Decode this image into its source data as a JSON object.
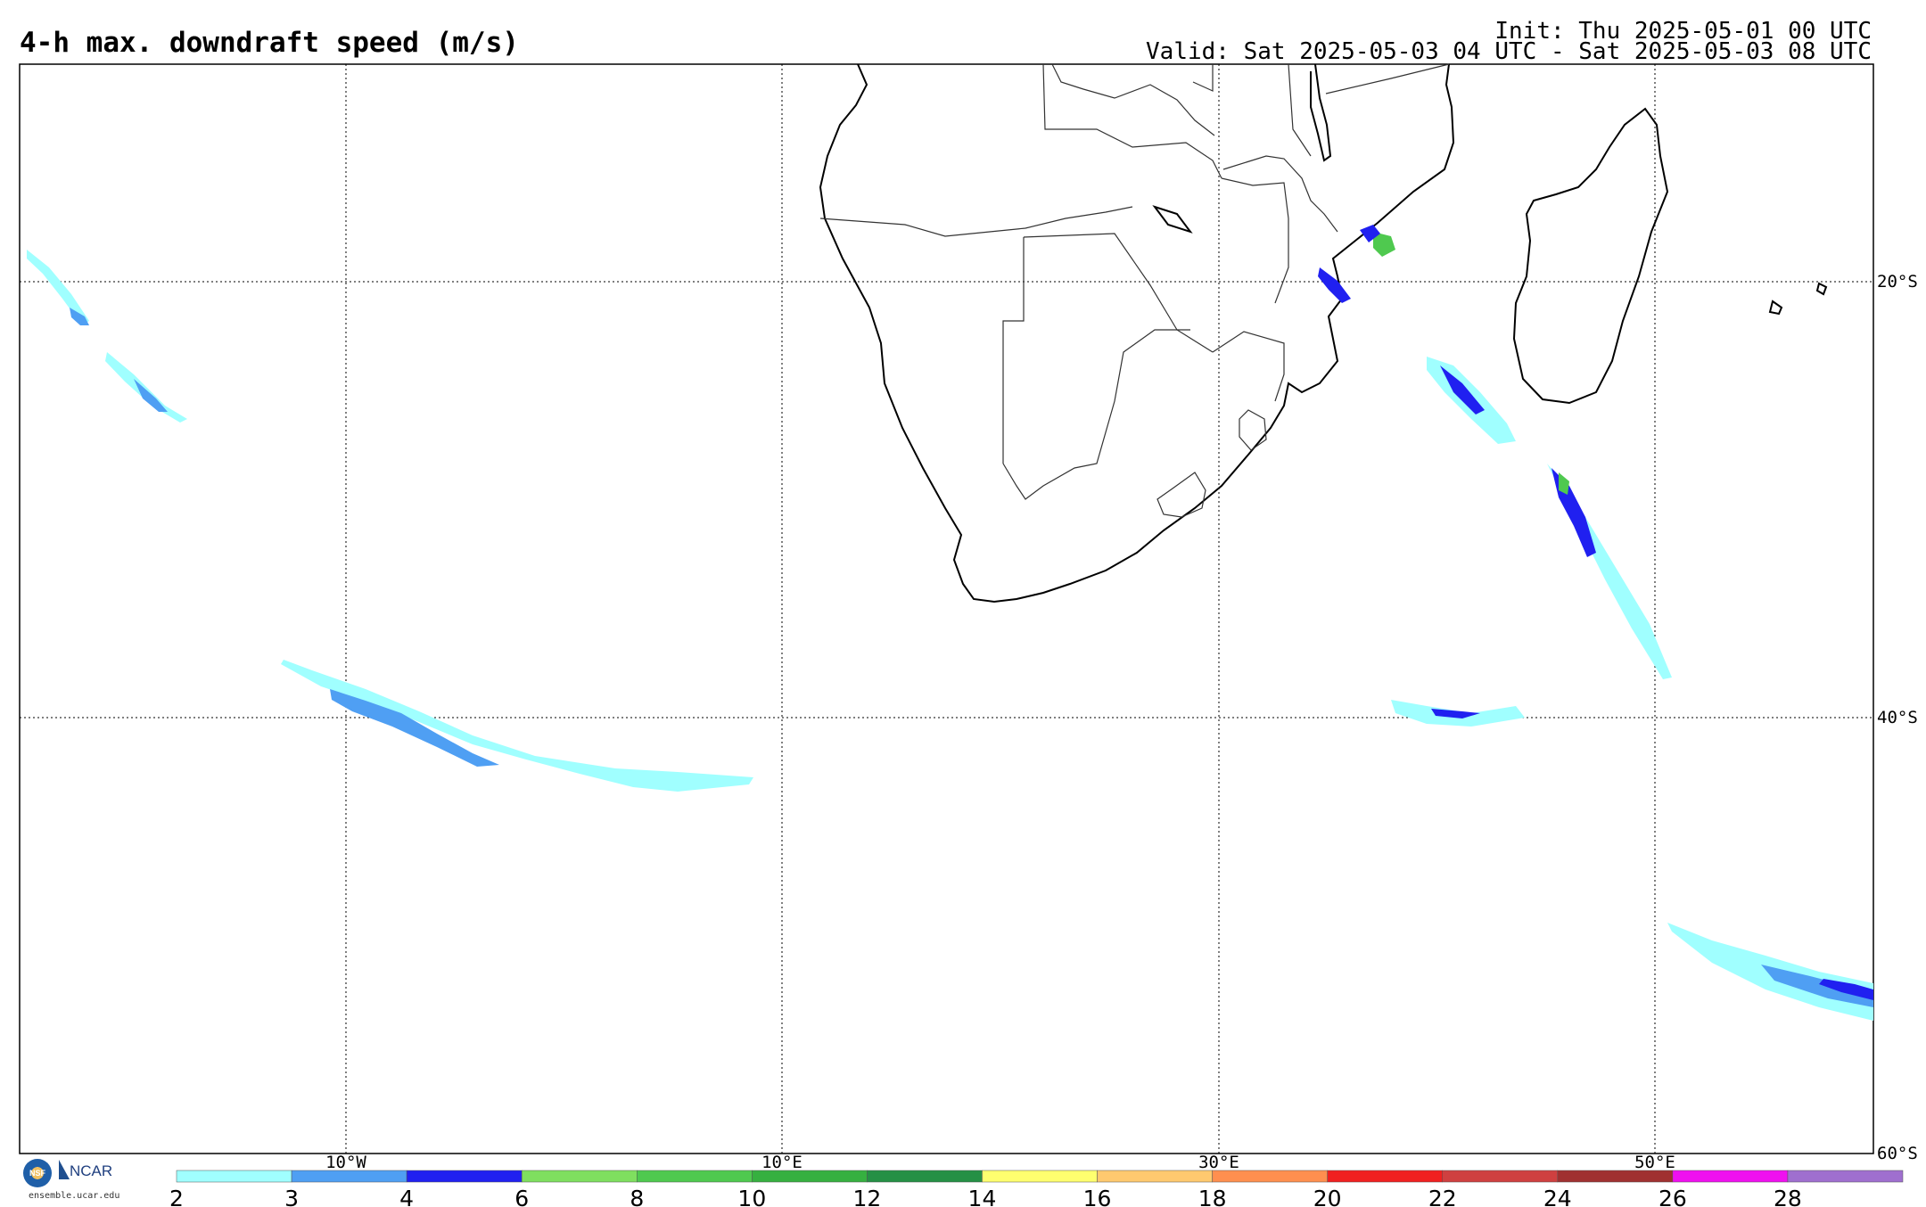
{
  "header": {
    "title": "4-h max. downdraft speed (m/s)",
    "init": "Init: Thu 2025-05-01 00 UTC",
    "valid": "Valid: Sat 2025-05-03 04 UTC - Sat 2025-05-03 08 UTC"
  },
  "map": {
    "lat_labels": [
      "20°S",
      "40°S",
      "60°S"
    ],
    "lon_labels": [
      "10°W",
      "10°E",
      "30°E",
      "50°E"
    ]
  },
  "colorbar": {
    "ticks": [
      "2",
      "3",
      "4",
      "6",
      "8",
      "10",
      "12",
      "14",
      "16",
      "18",
      "20",
      "22",
      "24",
      "26",
      "28"
    ],
    "colors": [
      "#a0ffff",
      "#4f9ff3",
      "#2020f0",
      "#7fdf5f",
      "#4fc94f",
      "#36b040",
      "#259045",
      "#ffff6f",
      "#ffc96f",
      "#ff8f4f",
      "#f02020",
      "#cf4040",
      "#a03030",
      "#ef10ef",
      "#9f6fcf"
    ]
  },
  "logos": {
    "nsf": "NSF",
    "ncar": "NCAR",
    "site": "ensemble.ucar.edu"
  }
}
